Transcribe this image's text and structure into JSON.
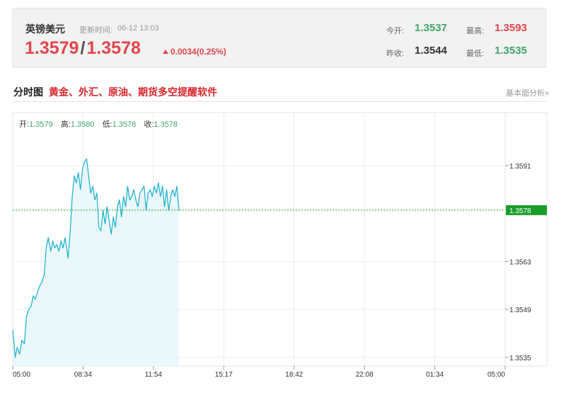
{
  "quote": {
    "name": "英镑美元",
    "time_label": "更新时间:",
    "time": "06-12 13:03",
    "bid": "1.3579",
    "separator": "/",
    "ask": "1.3578",
    "change": "0.0034(0.25%)",
    "stats": {
      "open_label": "今开:",
      "open": "1.3537",
      "high_label": "最高:",
      "high": "1.3593",
      "prev_close_label": "昨收:",
      "prev_close": "1.3544",
      "low_label": "最低:",
      "low": "1.3535"
    }
  },
  "section": {
    "title": "分时图",
    "ad": "黄金、外汇、原油、期货多空提醒软件",
    "link": "基本面分析»"
  },
  "ohlc": {
    "open_label": "开:",
    "open": "1.3579",
    "high_label": "高:",
    "high": "1.3580",
    "low_label": "低:",
    "low": "1.3578",
    "close_label": "收:",
    "close": "1.3578"
  },
  "colors": {
    "up": "#e0474d",
    "down": "#3fa66b",
    "line": "#23b5cc",
    "area": "#eaf7fb",
    "current_tag": "#1a9e2b"
  },
  "chart_data": {
    "type": "area",
    "title": "",
    "xlabel": "",
    "ylabel": "",
    "x_ticks": [
      "05:00",
      "08:34",
      "11:54",
      "15:17",
      "18:42",
      "22:08",
      "01:34",
      "05:00"
    ],
    "y_ticks": [
      1.3591,
      1.3563,
      1.3549,
      1.3535
    ],
    "ylim": [
      1.35325,
      1.36065
    ],
    "current_price": "1.3578",
    "grid": true,
    "session_hours": 24,
    "series": [
      {
        "x": [
          0,
          0.12,
          0.22,
          0.33,
          0.45,
          0.57,
          0.67,
          0.78,
          0.9,
          1,
          1.1,
          1.2,
          1.32,
          1.42,
          1.53,
          1.63,
          1.73,
          1.85,
          1.95,
          2.05,
          2.15,
          2.25,
          2.35,
          2.45,
          2.55,
          2.7,
          2.8,
          2.9,
          3.0,
          3.1,
          3.2,
          3.3,
          3.4,
          3.5,
          3.6,
          3.7,
          3.8,
          3.9,
          4.0,
          4.1,
          4.2,
          4.3,
          4.4,
          4.5,
          4.6,
          4.7,
          4.8,
          4.9,
          5.0,
          5.1,
          5.2,
          5.3,
          5.4,
          5.5,
          5.6,
          5.7,
          5.8,
          5.9,
          6.0,
          6.1,
          6.2,
          6.3,
          6.4,
          6.5,
          6.6,
          6.7,
          6.8,
          6.9,
          7.0,
          7.1,
          7.2,
          7.3,
          7.4,
          7.5,
          7.6,
          7.7,
          7.8,
          7.9,
          8.0,
          8.1
        ],
        "y": [
          1.3543,
          1.3535,
          1.3538,
          1.3536,
          1.354,
          1.3539,
          1.3547,
          1.3549,
          1.355,
          1.3553,
          1.3552,
          1.3554,
          1.3556,
          1.3557,
          1.3559,
          1.3567,
          1.357,
          1.3566,
          1.3569,
          1.3567,
          1.3568,
          1.3566,
          1.3569,
          1.3567,
          1.357,
          1.3564,
          1.3572,
          1.3582,
          1.3588,
          1.3586,
          1.3589,
          1.3584,
          1.359,
          1.3592,
          1.3593,
          1.3588,
          1.3583,
          1.3585,
          1.3581,
          1.3583,
          1.3573,
          1.3572,
          1.3578,
          1.3574,
          1.3579,
          1.3575,
          1.3571,
          1.3576,
          1.3573,
          1.3579,
          1.3581,
          1.3576,
          1.3582,
          1.3579,
          1.3585,
          1.3581,
          1.3582,
          1.3584,
          1.3581,
          1.3579,
          1.3583,
          1.3584,
          1.3585,
          1.3578,
          1.3583,
          1.3584,
          1.3582,
          1.3585,
          1.3583,
          1.3586,
          1.3582,
          1.3585,
          1.3579,
          1.3584,
          1.3578,
          1.3582,
          1.3584,
          1.3582,
          1.3585,
          1.3578
        ]
      }
    ]
  }
}
